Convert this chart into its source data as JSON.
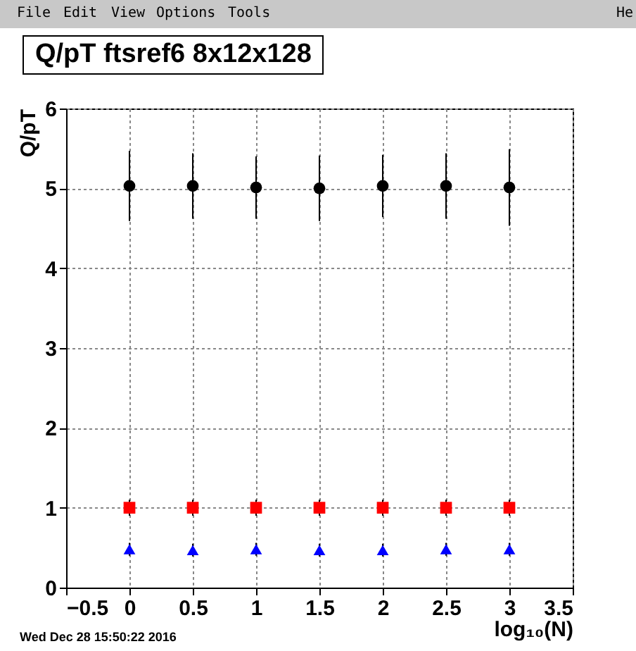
{
  "chart_data": {
    "type": "scatter",
    "title": "Q/pT ftsref6 8x12x128",
    "xlabel": "log₁₀(N)",
    "ylabel": "Q/pT",
    "annotations": [
      "File",
      "Edit",
      "View",
      "Options",
      "Tools",
      "He",
      "Wed Dec 28 15:50:22 2016"
    ],
    "x": [
      0,
      0.5,
      1,
      1.5,
      2,
      2.5,
      3
    ],
    "series": [
      {
        "color": "#000000",
        "marker": "circle",
        "values": [
          5.03,
          5.03,
          5.01,
          5.0,
          5.03,
          5.03,
          5.01
        ],
        "errors": [
          0.44,
          0.41,
          0.39,
          0.41,
          0.39,
          0.41,
          0.48
        ]
      },
      {
        "color": "#ff0000",
        "marker": "square",
        "values": [
          1.0,
          1.0,
          1.0,
          1.0,
          1.0,
          1.0,
          1.0
        ],
        "errors": [
          0.1,
          0.1,
          0.1,
          0.1,
          0.1,
          0.1,
          0.1
        ]
      },
      {
        "color": "#0000ff",
        "marker": "triangle",
        "values": [
          0.48,
          0.47,
          0.48,
          0.47,
          0.47,
          0.48,
          0.48
        ],
        "errors": [
          0.08,
          0.08,
          0.08,
          0.08,
          0.08,
          0.08,
          0.08
        ]
      }
    ],
    "xlim": [
      -0.5,
      3.5
    ],
    "xticks": [
      -0.5,
      0,
      0.5,
      1,
      1.5,
      2,
      2.5,
      3,
      3.5
    ],
    "ylim": [
      0,
      6
    ],
    "yticks": [
      0,
      1,
      2,
      3,
      4,
      5,
      6
    ],
    "grid": true,
    "legend": false
  }
}
